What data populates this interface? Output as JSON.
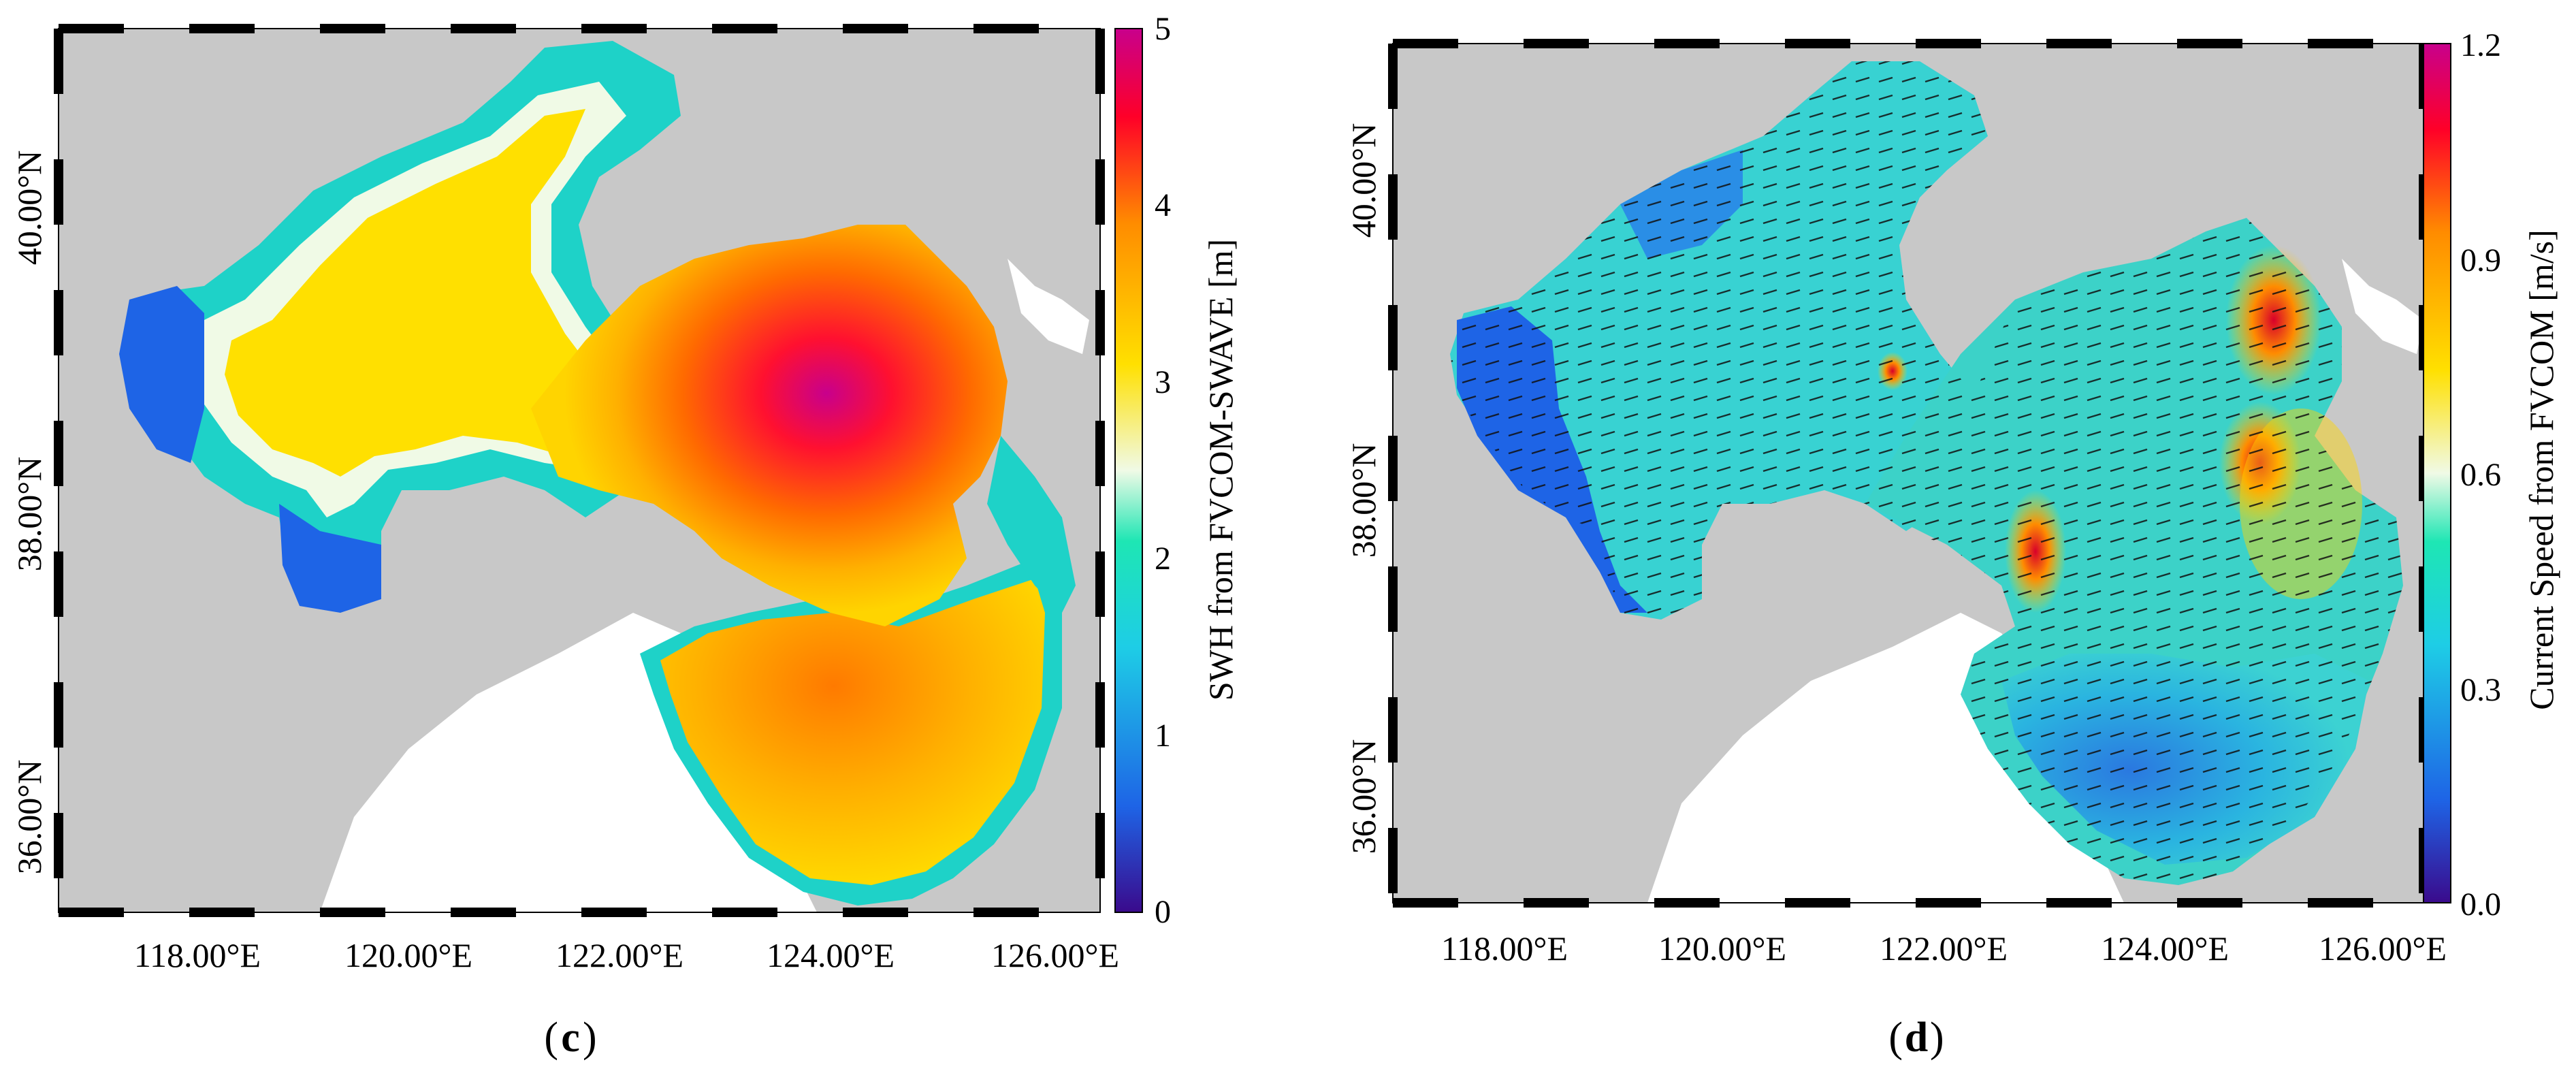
{
  "figure": {
    "panels": [
      {
        "label": "c",
        "x_ticks": [
          "118.00°E",
          "120.00°E",
          "122.00°E",
          "124.00°E",
          "126.00°E"
        ],
        "y_ticks": [
          "40.00°N",
          "38.00°N",
          "36.00°N"
        ],
        "colorbar": {
          "label": "SWH from FVCOM-SWAVE [m]",
          "ticks": [
            "0",
            "1",
            "2",
            "3",
            "4",
            "5"
          ],
          "range": [
            0,
            5
          ]
        }
      },
      {
        "label": "d",
        "x_ticks": [
          "118.00°E",
          "120.00°E",
          "122.00°E",
          "124.00°E",
          "126.00°E"
        ],
        "y_ticks": [
          "40.00°N",
          "38.00°N",
          "36.00°N"
        ],
        "colorbar": {
          "label": "Current Speed from FVCOM [m/s]",
          "ticks": [
            "0.0",
            "0.3",
            "0.6",
            "0.9",
            "1.2"
          ],
          "range": [
            0.0,
            1.2
          ]
        }
      }
    ]
  },
  "colors": {
    "land": "#c8c8c8",
    "coast_white": "#ffffff",
    "ramp_low": "#3a0a8c",
    "ramp_blue": "#1e64e6",
    "ramp_cyan": "#1ee6c8",
    "ramp_white": "#f0fae6",
    "ramp_yellow": "#ffe000",
    "ramp_orange": "#ff8c00",
    "ramp_red": "#ff0028",
    "ramp_magenta": "#c8008c"
  }
}
